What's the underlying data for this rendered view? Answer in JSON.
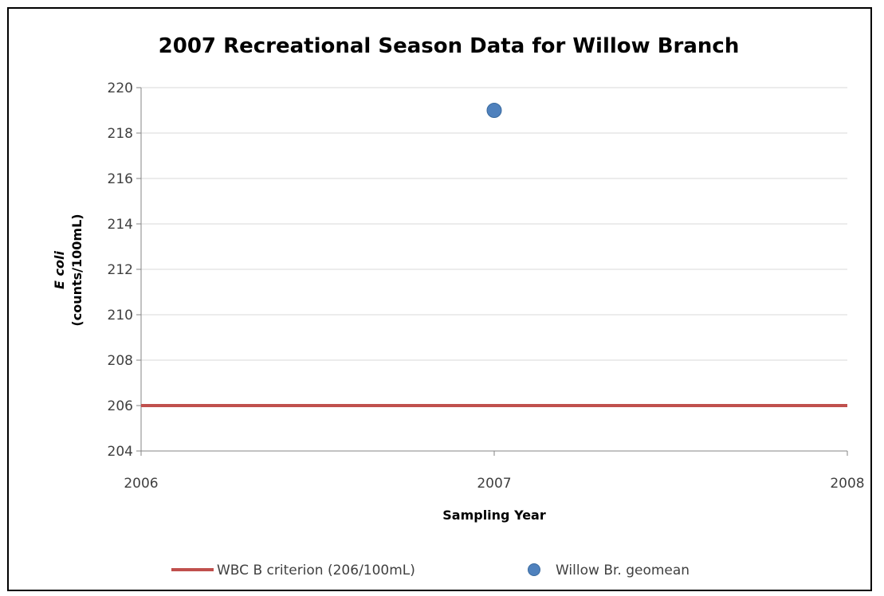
{
  "chart_data": {
    "type": "scatter",
    "title": "2007 Recreational Season Data for Willow Branch",
    "xlabel": "Sampling Year",
    "ylabel_line1": "E coli",
    "ylabel_line2": "(counts/100mL)",
    "xlim": [
      2006,
      2008
    ],
    "ylim": [
      204,
      220
    ],
    "x_ticks": [
      2006,
      2007,
      2008
    ],
    "y_ticks": [
      204,
      206,
      208,
      210,
      212,
      214,
      216,
      218,
      220
    ],
    "grid": true,
    "legend_position": "bottom",
    "series": [
      {
        "name": "WBC B criterion (206/100mL)",
        "kind": "line",
        "color": "#C0504D",
        "points": [
          {
            "x": 2006,
            "y": 206
          },
          {
            "x": 2008,
            "y": 206
          }
        ]
      },
      {
        "name": "Willow Br. geomean",
        "kind": "marker",
        "color": "#4F81BD",
        "points": [
          {
            "x": 2007,
            "y": 219
          }
        ]
      }
    ]
  }
}
